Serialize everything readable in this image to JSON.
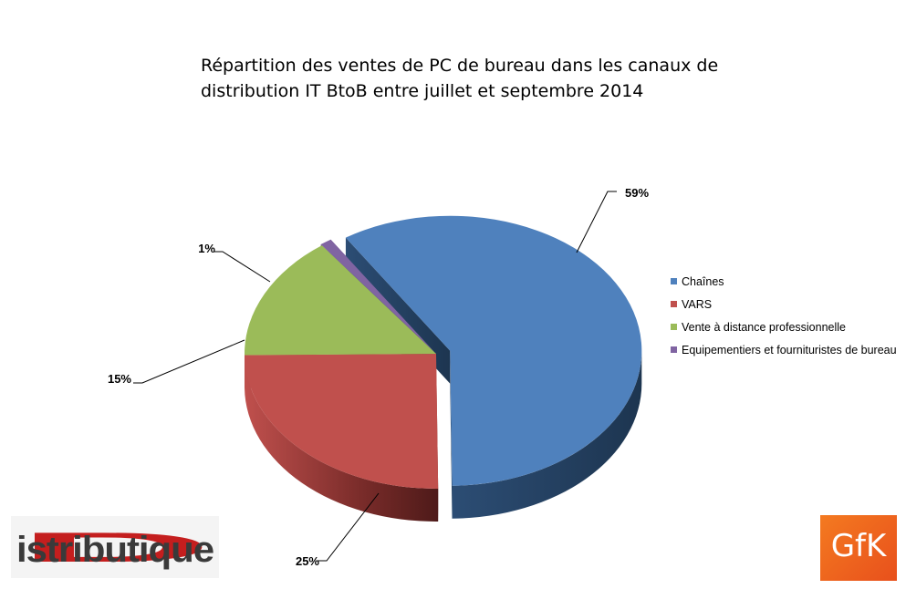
{
  "chart_data": {
    "type": "pie",
    "title_lines": [
      "Répartition des ventes de PC de bureau dans les canaux de",
      "distribution IT BtoB entre juillet et septembre 2014"
    ],
    "slices": [
      {
        "name": "Chaînes",
        "value": 59,
        "label": "59%",
        "color": "#4f81bd"
      },
      {
        "name": "VARS",
        "value": 25,
        "label": "25%",
        "color": "#c0504d"
      },
      {
        "name": "Vente à distance professionnelle",
        "value": 15,
        "label": "15%",
        "color": "#9bbb59"
      },
      {
        "name": "Equipementiers et fournituristes de bureau",
        "value": 1,
        "label": "1%",
        "color": "#8064a2"
      }
    ],
    "legend_position": "right",
    "style": "3d-exploded"
  },
  "logos": {
    "distributique": "Distributique",
    "gfk": "GfK"
  }
}
